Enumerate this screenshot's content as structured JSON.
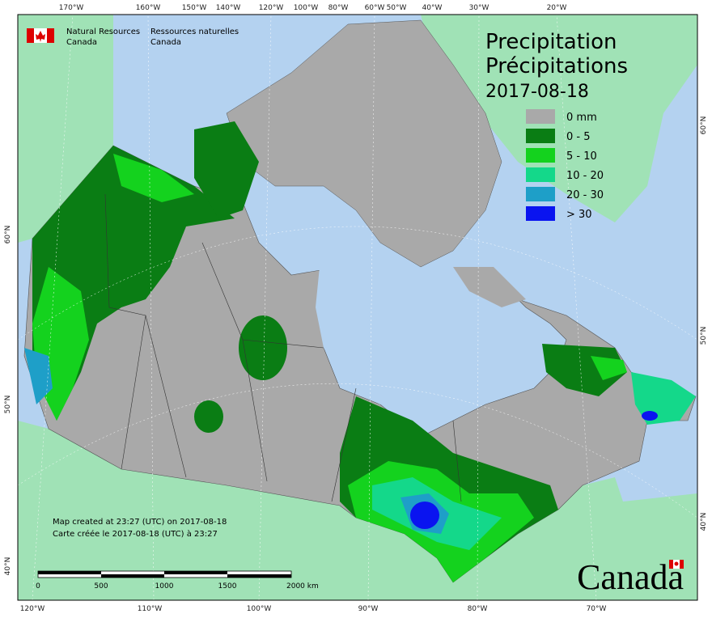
{
  "header": {
    "en_line1": "Natural Resources",
    "en_line2": "Canada",
    "fr_line1": "Ressources naturelles",
    "fr_line2": "Canada"
  },
  "title": {
    "en": "Precipitation",
    "fr": "Précipitations",
    "date": "2017-08-18"
  },
  "legend": [
    {
      "label": "0 mm",
      "color": "#a9a9a9"
    },
    {
      "label": "0 - 5",
      "color": "#0a7d14"
    },
    {
      "label": "5 - 10",
      "color": "#14d21e"
    },
    {
      "label": "10 - 20",
      "color": "#14d88a"
    },
    {
      "label": "20 - 30",
      "color": "#1e9fc8"
    },
    {
      "label": "> 30",
      "color": "#0a14f0"
    }
  ],
  "axis_labels": {
    "top": [
      "170°W",
      "160°W",
      "150°W",
      "140°W",
      "120°W",
      "100°W",
      "80°W",
      "60°W",
      "50°W",
      "40°W",
      "30°W",
      "20°W"
    ],
    "bottom": [
      "120°W",
      "110°W",
      "100°W",
      "90°W",
      "80°W",
      "70°W"
    ],
    "left": [
      "60°N",
      "50°N",
      "40°N"
    ],
    "right": [
      "60°N",
      "50°N",
      "40°N"
    ]
  },
  "footer": {
    "line1": "Map created at 23:27 (UTC) on 2017-08-18",
    "line2": "Carte créée le 2017-08-18 (UTC) à 23:27"
  },
  "scale_bar": {
    "labels": [
      "0",
      "500",
      "1000",
      "1500",
      "2000 km"
    ]
  },
  "wordmark": "Canada"
}
